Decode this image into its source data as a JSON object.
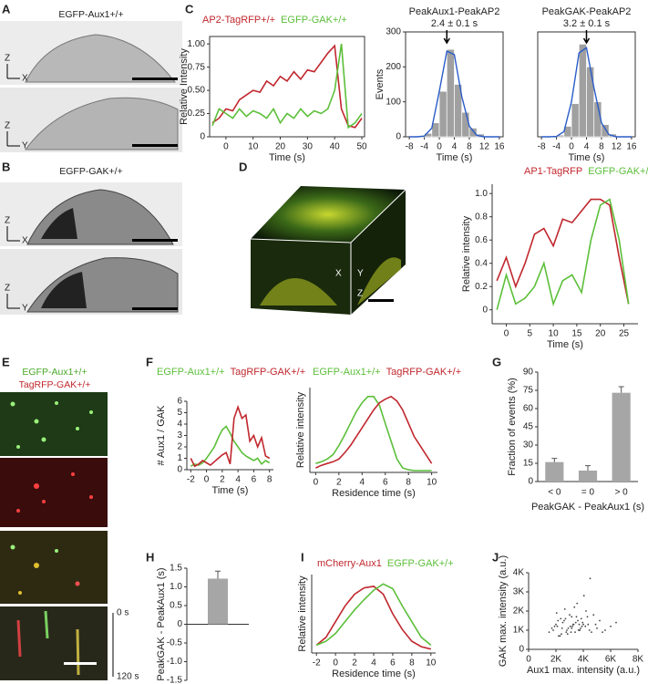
{
  "panels": {
    "labels": [
      "A",
      "B",
      "C",
      "D",
      "E",
      "F",
      "G",
      "H",
      "I",
      "J"
    ],
    "captions": [
      "EGFP-Aux1+/+",
      "EGFP-GAK+/+",
      "EGFP-Aux1+/+",
      "TagRFP-GAK+/+"
    ],
    "axes": [
      "Z",
      "X",
      "Z",
      "Y",
      "Z",
      "X",
      "Z",
      "Y"
    ],
    "d_axes": [
      "X",
      "Y",
      "Z"
    ],
    "times": [
      "0 s",
      "120 s"
    ]
  },
  "chart_data": [
    {
      "type": "line",
      "ylabel": "Relative Intensity",
      "xlabel": "Time (s)",
      "x": [
        -5,
        -2.5,
        0,
        2.5,
        5,
        7.5,
        10,
        12.5,
        15,
        17.5,
        20,
        22.5,
        25,
        27.5,
        30,
        32.5,
        35,
        37.5,
        40,
        42.5,
        45,
        47.5,
        50
      ],
      "series": [
        {
          "name": "AP2-TagRFP+/+",
          "color": "#c0272d",
          "values": [
            0.15,
            0.2,
            0.3,
            0.28,
            0.4,
            0.45,
            0.5,
            0.48,
            0.6,
            0.55,
            0.65,
            0.6,
            0.7,
            0.62,
            0.72,
            0.7,
            0.8,
            0.9,
            0.98,
            0.3,
            0.12,
            0.1,
            0.2
          ]
        },
        {
          "name": "EGFP-GAK+/+",
          "color": "#5cbf3a",
          "values": [
            0.12,
            0.3,
            0.25,
            0.2,
            0.3,
            0.22,
            0.28,
            0.25,
            0.2,
            0.3,
            0.15,
            0.25,
            0.2,
            0.3,
            0.22,
            0.28,
            0.25,
            0.3,
            0.5,
            1.0,
            0.1,
            0.15,
            0.25
          ]
        }
      ],
      "xlim": [
        -6,
        51
      ],
      "ylim": [
        0,
        1.08
      ],
      "xticks": [
        0,
        10,
        20,
        30,
        40,
        50
      ],
      "yticks": [
        0,
        0.25,
        {
          "value": 0.5,
          "label": "0.50"
        },
        0.75,
        {
          "value": 1,
          "label": "1.00"
        }
      ]
    },
    {
      "type": "histogram",
      "title": "PeakAux1-PeakAP2",
      "annotation": "2.4 ± 0.1 s",
      "ylabel": "Events",
      "xlabel": "Time (s)",
      "bins": [
        -8,
        -6,
        -4,
        -2,
        0,
        2,
        4,
        6,
        8,
        10,
        12,
        14,
        16
      ],
      "counts": [
        0,
        3,
        10,
        40,
        130,
        250,
        150,
        70,
        25,
        8,
        2,
        0
      ],
      "color": "#a0a0a0",
      "fit": {
        "color": "#2a5cc8",
        "x": [
          -8,
          -6,
          -4,
          -2,
          0,
          2,
          4,
          6,
          8,
          10,
          12,
          14,
          16
        ],
        "values": [
          0,
          0,
          2,
          25,
          130,
          245,
          235,
          115,
          30,
          4,
          0,
          0,
          0
        ]
      },
      "xlim": [
        -9,
        17
      ],
      "ylim": [
        0,
        300
      ],
      "xticks": [
        -8,
        -4,
        0,
        4,
        8,
        12,
        16
      ],
      "yticks": [
        0,
        100,
        200,
        300
      ]
    },
    {
      "type": "histogram",
      "title": "PeakGAK-PeakAP2",
      "annotation": "3.2 ± 0.1 s",
      "xlabel": "Time (s)",
      "bins": [
        -8,
        -6,
        -4,
        -2,
        0,
        2,
        4,
        6,
        8,
        10,
        12,
        14,
        16
      ],
      "counts": [
        0,
        0,
        5,
        30,
        95,
        265,
        200,
        100,
        35,
        8,
        2,
        0
      ],
      "color": "#a0a0a0",
      "fit": {
        "color": "#2a5cc8",
        "x": [
          -8,
          -6,
          -4,
          -2,
          0,
          2,
          4,
          6,
          8,
          10,
          12,
          14,
          16
        ],
        "values": [
          0,
          0,
          1,
          15,
          100,
          240,
          255,
          140,
          40,
          6,
          0,
          0,
          0
        ]
      },
      "xlim": [
        -9,
        17
      ],
      "ylim": [
        0,
        300
      ],
      "xticks": [
        -8,
        -4,
        0,
        4,
        8,
        12,
        16
      ]
    },
    {
      "type": "line",
      "ylabel": "Relative intensity",
      "xlabel": "Time (s)",
      "x": [
        -2,
        0,
        2,
        4,
        6,
        8,
        10,
        12,
        14,
        16,
        18,
        20,
        22,
        24,
        26
      ],
      "series": [
        {
          "name": "AP1-TagRFP",
          "color": "#c0272d",
          "values": [
            0.25,
            0.45,
            0.2,
            0.4,
            0.65,
            0.7,
            0.55,
            0.78,
            0.75,
            0.85,
            0.95,
            0.95,
            0.9,
            0.45,
            0.05
          ]
        },
        {
          "name": "EGFP-GAK+/+",
          "color": "#5cbf3a",
          "values": [
            0.0,
            0.3,
            0.05,
            0.1,
            0.2,
            0.4,
            0.05,
            0.25,
            0.3,
            0.15,
            0.6,
            0.9,
            0.95,
            0.6,
            0.05
          ]
        }
      ],
      "xlim": [
        -3,
        28
      ],
      "ylim": [
        -0.12,
        1.08
      ],
      "xticks": [
        0,
        5,
        10,
        15,
        20,
        25
      ],
      "yticks": [
        0,
        0.2,
        0.4,
        0.6,
        0.8,
        {
          "value": 1,
          "label": "1.0"
        }
      ]
    },
    {
      "type": "line",
      "ylabel": "# Aux1 / GAK",
      "xlabel": "Time (s)",
      "x": [
        -2,
        -1.5,
        -1,
        -0.5,
        0,
        0.5,
        1,
        1.5,
        2,
        2.5,
        3,
        3.5,
        4,
        4.5,
        5,
        5.5,
        6,
        6.5,
        7,
        7.5,
        8
      ],
      "series": [
        {
          "name": "EGFP-Aux1+/+",
          "color": "#5cbf3a",
          "values": [
            0.3,
            0.5,
            0.4,
            0.6,
            1.0,
            1.5,
            2.0,
            2.8,
            3.5,
            3.8,
            3.2,
            2.5,
            2.0,
            1.5,
            1.2,
            1.0,
            0.8,
            1.0,
            0.5,
            0.8,
            0.6
          ]
        },
        {
          "name": "TagRFP-GAK+/+",
          "color": "#c0272d",
          "values": [
            1.0,
            0.3,
            0.5,
            0.8,
            0.6,
            0.4,
            0.7,
            1.0,
            1.3,
            1.5,
            0.5,
            4.5,
            5.5,
            4.5,
            4.8,
            2.5,
            3.0,
            2.0,
            2.8,
            1.2,
            1.0
          ]
        }
      ],
      "xlim": [
        -2.5,
        8.5
      ],
      "ylim": [
        0,
        6
      ],
      "xticks": [
        -2,
        0,
        2,
        4,
        6,
        8
      ],
      "yticks": [
        0,
        1,
        2,
        3,
        4,
        5,
        6
      ]
    },
    {
      "type": "line",
      "ylabel": "Relative intensity",
      "xlabel": "Residence time (s)",
      "x": [
        0,
        0.5,
        1,
        1.5,
        2,
        2.5,
        3,
        3.5,
        4,
        4.5,
        5,
        5.5,
        6,
        6.5,
        7,
        7.5,
        8,
        8.5,
        9,
        9.5,
        10
      ],
      "series": [
        {
          "name": "EGFP-Aux1+/+",
          "color": "#5cbf3a",
          "values": [
            0.1,
            0.12,
            0.15,
            0.2,
            0.3,
            0.42,
            0.55,
            0.68,
            0.78,
            0.85,
            0.85,
            0.75,
            0.55,
            0.35,
            0.15,
            0.05,
            0.03,
            0.02,
            0.02,
            0.02,
            0.02
          ]
        },
        {
          "name": "TagRFP-GAK+/+",
          "color": "#c0272d",
          "values": [
            0.05,
            0.08,
            0.1,
            0.12,
            0.15,
            0.22,
            0.3,
            0.4,
            0.5,
            0.6,
            0.7,
            0.78,
            0.82,
            0.85,
            0.8,
            0.7,
            0.55,
            0.4,
            0.3,
            0.2,
            0.1
          ]
        }
      ],
      "xlim": [
        -0.5,
        10.5
      ],
      "ylim": [
        0,
        0.95
      ],
      "xticks": [
        0,
        2,
        4,
        6,
        8,
        10
      ]
    },
    {
      "type": "bar",
      "ylabel": "Fraction of events (%)",
      "xlabel": "PeakGAK - PeakAux1 (s)",
      "categories": [
        "< 0",
        "= 0",
        "> 0"
      ],
      "values": [
        16,
        9,
        73
      ],
      "errors": [
        3,
        4,
        5
      ],
      "color": "#a6a6a6",
      "ylim": [
        0,
        90
      ],
      "yticks": [
        0,
        15,
        30,
        45,
        60,
        75,
        90
      ]
    },
    {
      "type": "bar",
      "ylabel": "PeakGAK - PeakAux1 (s)",
      "categories": [
        null
      ],
      "values": [
        1.22
      ],
      "errors": [
        0.2
      ],
      "color": "#a6a6a6",
      "ylim": [
        -1.5,
        1.5
      ],
      "yticks": [
        -1.5,
        {
          "value": -1,
          "label": "-1.0"
        },
        -0.5,
        0,
        0.5,
        {
          "value": 1,
          "label": "1.0"
        },
        1.5
      ]
    },
    {
      "type": "line",
      "ylabel": "Relative intensity",
      "xlabel": "Residence time (s)",
      "x": [
        -2,
        -1,
        0,
        1,
        2,
        3,
        4,
        5,
        6,
        7,
        8,
        9,
        10
      ],
      "series": [
        {
          "name": "mCherry-Aux1",
          "color": "#c0272d",
          "values": [
            0.1,
            0.2,
            0.4,
            0.6,
            0.75,
            0.83,
            0.85,
            0.75,
            0.5,
            0.3,
            0.15,
            0.08,
            0.05
          ]
        },
        {
          "name": "EGFP-GAK+/+",
          "color": "#5cbf3a",
          "values": [
            0.1,
            0.15,
            0.25,
            0.4,
            0.55,
            0.68,
            0.8,
            0.88,
            0.82,
            0.6,
            0.4,
            0.2,
            0.1
          ]
        }
      ],
      "xlim": [
        -2.5,
        10.5
      ],
      "ylim": [
        0,
        1
      ],
      "xticks": [
        -2,
        0,
        2,
        4,
        6,
        8,
        10
      ]
    },
    {
      "type": "scatter",
      "ylabel": "GAK max. intensity (a.u.)",
      "xlabel": "Aux1 max. intensity (a.u.)",
      "color": "#444444",
      "x": [
        1800,
        2100,
        2400,
        2600,
        2900,
        3100,
        3300,
        3500,
        3700,
        3900,
        2200,
        2500,
        2800,
        3000,
        3200,
        3400,
        3600,
        3800,
        4000,
        4200,
        1500,
        1700,
        2000,
        2300,
        2700,
        3050,
        3350,
        3650,
        3950,
        4300,
        4600,
        4900,
        5200,
        5600,
        6000,
        6400,
        2050,
        2450,
        2850,
        3250,
        3550,
        3850,
        4150,
        4450,
        4750,
        1900,
        2350,
        2750,
        3150,
        3450,
        3750,
        4050,
        4350,
        5000,
        5400,
        2150,
        2650,
        3150,
        3700,
        4500
      ],
      "y": [
        1000,
        1200,
        800,
        1500,
        1100,
        900,
        1300,
        1700,
        1000,
        1200,
        700,
        1400,
        1000,
        1800,
        1200,
        900,
        1500,
        1100,
        1300,
        2000,
        900,
        1100,
        1300,
        700,
        1600,
        1200,
        2200,
        1000,
        1400,
        1700,
        900,
        1300,
        1500,
        1000,
        1200,
        1400,
        1900,
        1100,
        800,
        1300,
        2400,
        1600,
        1200,
        1000,
        1800,
        1200,
        1600,
        900,
        1100,
        1400,
        1000,
        2800,
        1300,
        1100,
        900,
        1500,
        2100,
        1700,
        1300,
        3700
      ],
      "xlim": [
        0,
        8000
      ],
      "ylim": [
        0,
        4000
      ],
      "xticks": [
        0,
        {
          "value": 2000,
          "label": "2K"
        },
        {
          "value": 4000,
          "label": "4K"
        },
        {
          "value": 6000,
          "label": "6K"
        },
        {
          "value": 8000,
          "label": "8K"
        }
      ],
      "yticks": [
        0,
        {
          "value": 1000,
          "label": "1K"
        },
        {
          "value": 2000,
          "label": "2K"
        },
        {
          "value": 3000,
          "label": "3K"
        },
        {
          "value": 4000,
          "label": "4K"
        }
      ]
    }
  ]
}
